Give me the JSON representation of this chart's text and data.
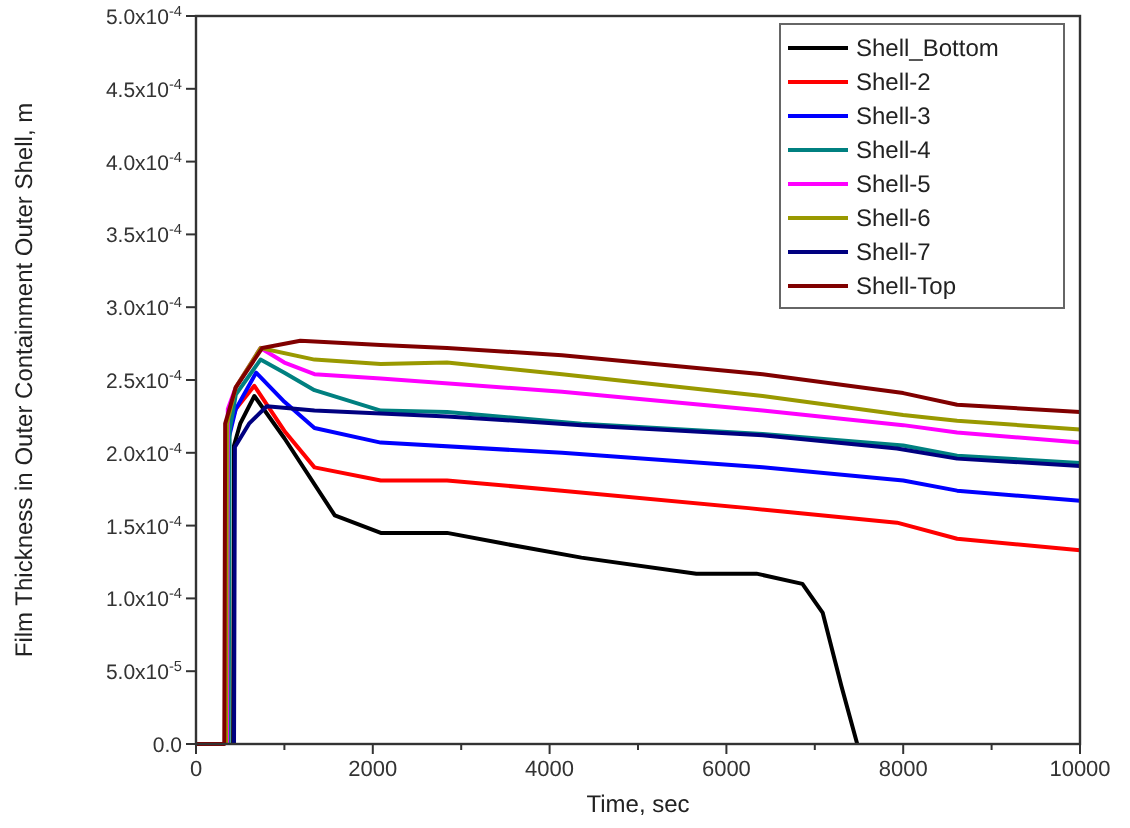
{
  "chart_data": {
    "type": "line",
    "xlabel": "Time, sec",
    "ylabel": "Film Thickness in Outer Containment Outer Shell, m",
    "xlim": [
      0,
      10000
    ],
    "ylim": [
      0,
      0.0005
    ],
    "xticks": [
      0,
      {
        "value": 1000,
        "label": null
      },
      2000,
      {
        "value": 3000,
        "label": null
      },
      4000,
      {
        "value": 5000,
        "label": null
      },
      6000,
      {
        "value": 7000,
        "label": null
      },
      8000,
      {
        "value": 9000,
        "label": null
      },
      10000
    ],
    "yticks": [
      {
        "value": 0,
        "label": "0.0"
      },
      {
        "value": 5e-05,
        "label": "5.0x10$^{-5}$"
      },
      {
        "value": 0.0001,
        "label": "1.0x10$^{-4}$"
      },
      {
        "value": 0.00015,
        "label": "1.5x10$^{-4}$"
      },
      {
        "value": 0.0002,
        "label": "2.0x10$^{-4}$"
      },
      {
        "value": 0.00025,
        "label": "2.5x10$^{-4}$"
      },
      {
        "value": 0.0003,
        "label": "3.0x10$^{-4}$"
      },
      {
        "value": 0.00035,
        "label": "3.5x10$^{-4}$"
      },
      {
        "value": 0.0004,
        "label": "4.0x10$^{-4}$"
      },
      {
        "value": 0.00045,
        "label": "4.5x10$^{-4}$"
      },
      {
        "value": 0.0005,
        "label": "5.0x10$^{-4}$"
      }
    ],
    "grid": false,
    "legend": "top right",
    "marker": "none",
    "line_style": "solid",
    "series": [
      {
        "name": "Shell_Bottom",
        "color": "#000000",
        "x": [
          420,
          430,
          500,
          660,
          1000,
          1570,
          2090,
          2840,
          3450,
          4360,
          5660,
          6340,
          6860,
          7090,
          7300,
          7480
        ],
        "values": [
          0,
          0.000205,
          0.00022,
          0.000239,
          0.00021,
          0.000157,
          0.000145,
          0.000145,
          0.000138,
          0.000128,
          0.000117,
          0.000117,
          0.00011,
          9e-05,
          4e-05,
          0
        ]
      },
      {
        "name": "Shell-2",
        "color": "#ff0000",
        "x": [
          330,
          340,
          450,
          660,
          1000,
          1340,
          2090,
          2840,
          4140,
          6250,
          7930,
          8610,
          10000
        ],
        "values": [
          0,
          0.00021,
          0.00023,
          0.000246,
          0.000215,
          0.00019,
          0.000181,
          0.000181,
          0.000174,
          0.000162,
          0.000152,
          0.000141,
          0.000133
        ]
      },
      {
        "name": "Shell-3",
        "color": "#0000ff",
        "x": [
          360,
          370,
          450,
          680,
          1000,
          1340,
          2090,
          4140,
          6410,
          8000,
          8610,
          10000
        ],
        "values": [
          0,
          0.00021,
          0.00023,
          0.000255,
          0.000235,
          0.000217,
          0.000207,
          0.0002,
          0.00019,
          0.000181,
          0.000174,
          0.000167
        ]
      },
      {
        "name": "Shell-4",
        "color": "#008080",
        "x": [
          370,
          380,
          450,
          730,
          1000,
          1340,
          2090,
          2840,
          4360,
          6410,
          8000,
          8610,
          10000
        ],
        "values": [
          0,
          0.000215,
          0.00024,
          0.000264,
          0.000255,
          0.000243,
          0.000229,
          0.000228,
          0.00022,
          0.000213,
          0.000205,
          0.000198,
          0.000193
        ]
      },
      {
        "name": "Shell-5",
        "color": "#ff00ff",
        "x": [
          350,
          360,
          450,
          730,
          1000,
          1340,
          2090,
          4140,
          6410,
          8000,
          8610,
          10000
        ],
        "values": [
          0,
          0.00023,
          0.000245,
          0.000272,
          0.000262,
          0.000254,
          0.000251,
          0.000242,
          0.000229,
          0.000219,
          0.000214,
          0.000207
        ]
      },
      {
        "name": "Shell-6",
        "color": "#999900",
        "x": [
          340,
          350,
          450,
          730,
          1340,
          2090,
          2840,
          4140,
          6410,
          8000,
          8610,
          10000
        ],
        "values": [
          0,
          0.00022,
          0.000245,
          0.000272,
          0.000264,
          0.000261,
          0.000262,
          0.000254,
          0.000239,
          0.000226,
          0.000222,
          0.000216
        ]
      },
      {
        "name": "Shell-7",
        "color": "#000080",
        "x": [
          430,
          440,
          600,
          800,
          1340,
          2840,
          4360,
          6410,
          7930,
          8610,
          10000
        ],
        "values": [
          0,
          0.000204,
          0.00022,
          0.000232,
          0.000229,
          0.000225,
          0.000219,
          0.000212,
          0.000203,
          0.000196,
          0.000191
        ]
      },
      {
        "name": "Shell-Top",
        "color": "#800000",
        "x": [
          0,
          320,
          330,
          450,
          750,
          1180,
          2090,
          2840,
          4140,
          6410,
          8000,
          8610,
          10000
        ],
        "values": [
          0,
          0,
          0.00022,
          0.000245,
          0.000272,
          0.000277,
          0.000274,
          0.000272,
          0.000267,
          0.000254,
          0.000241,
          0.000233,
          0.000228
        ]
      }
    ]
  }
}
